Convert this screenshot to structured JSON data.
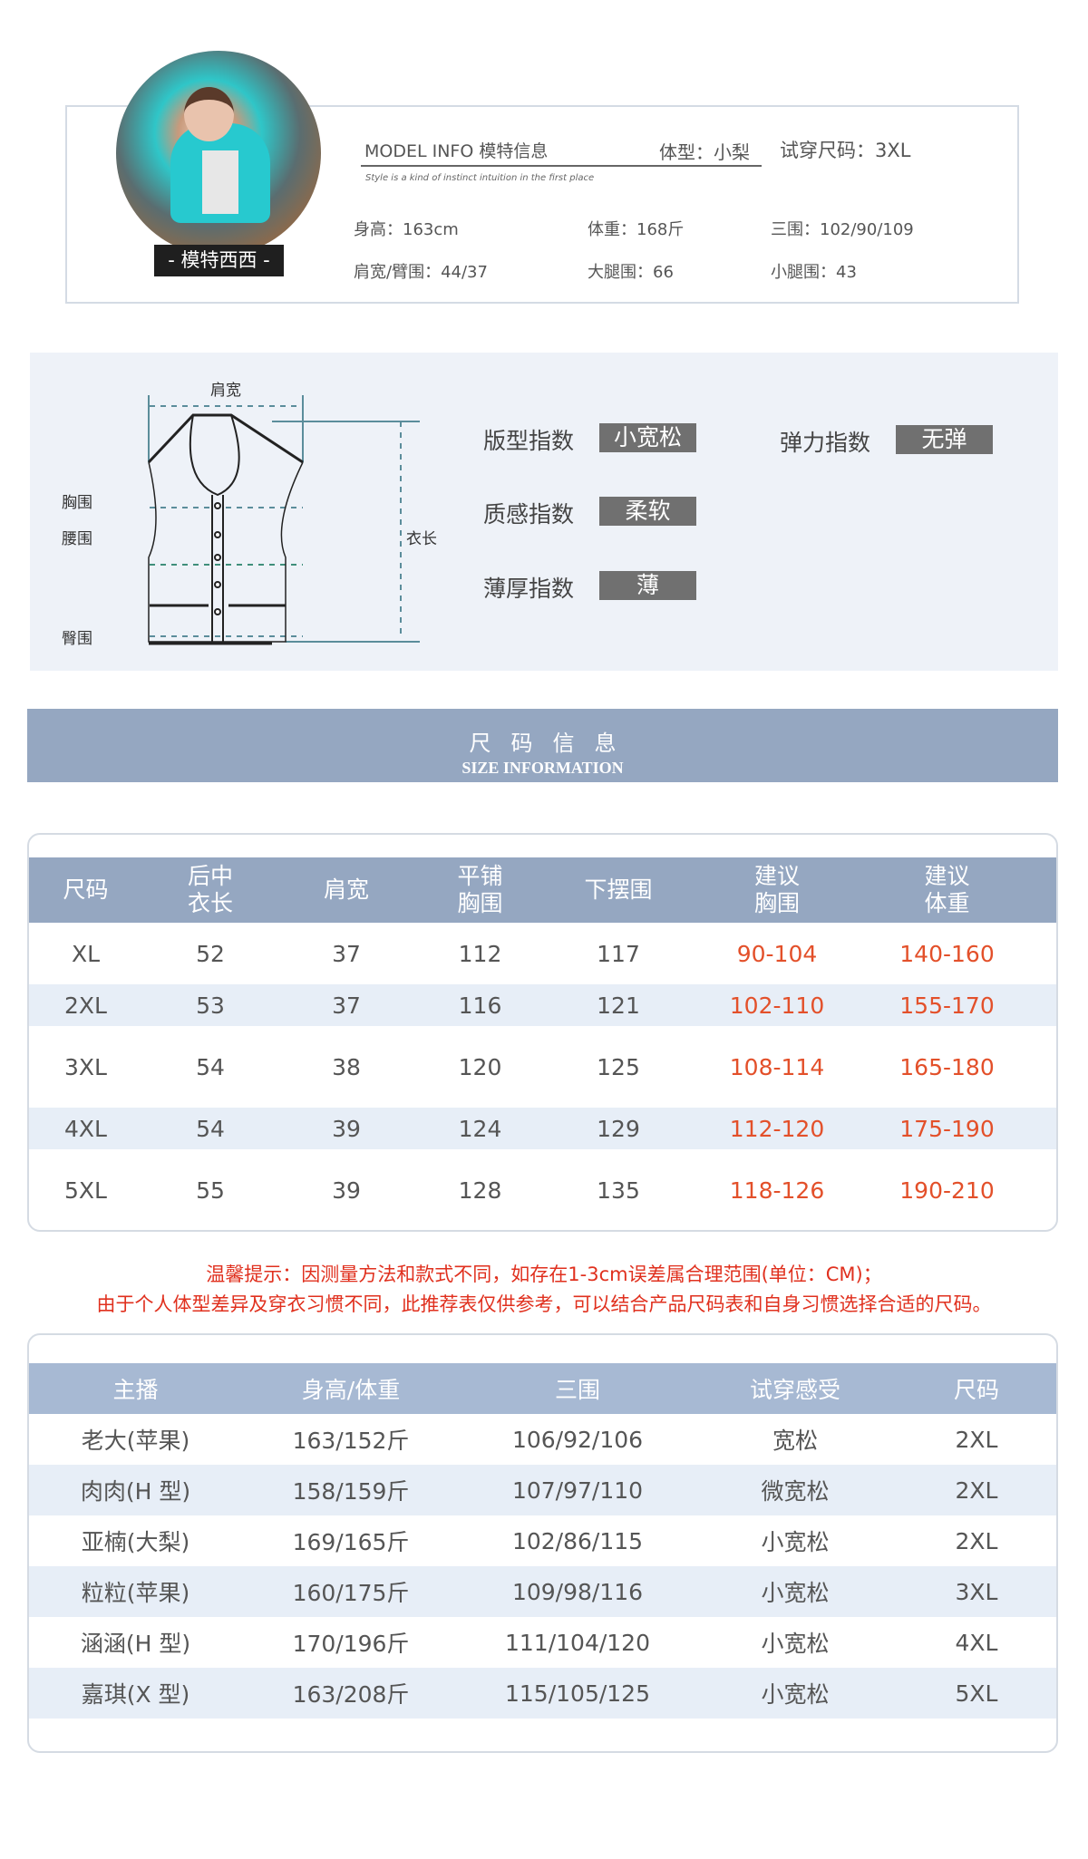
{
  "model": {
    "name": "- 模特西西 -",
    "title": "MODEL  INFO 模特信息",
    "body_type": "体型：小梨",
    "try_size": "试穿尺码：3XL",
    "slogan": "Style is a kind of instinct    intuition in the first place",
    "stats": [
      "身高：163cm",
      "体重：168斤",
      "三围：102/90/109",
      "肩宽/臂围：44/37",
      "大腿围：66",
      "小腿围：43"
    ]
  },
  "diagram": {
    "labels": {
      "shoulder": "肩宽",
      "chest": "胸围",
      "waist": "腰围",
      "hip": "臀围",
      "length": "衣长"
    },
    "indices": [
      {
        "label": "版型指数",
        "value": "小宽松"
      },
      {
        "label": "弹力指数",
        "value": "无弹"
      },
      {
        "label": "质感指数",
        "value": "柔软"
      },
      {
        "label": "薄厚指数",
        "value": "薄"
      }
    ]
  },
  "banner": {
    "cn": "尺码信息",
    "en": "SIZE  INFORMATION"
  },
  "size_table": {
    "headers": [
      [
        "尺码",
        ""
      ],
      [
        "后中",
        "衣长"
      ],
      [
        "肩宽",
        ""
      ],
      [
        "平铺",
        "胸围"
      ],
      [
        "下摆围",
        ""
      ],
      [
        "建议",
        "胸围"
      ],
      [
        "建议",
        "体重"
      ]
    ],
    "rows": [
      [
        "XL",
        "52",
        "37",
        "112",
        "117",
        "90-104",
        "140-160"
      ],
      [
        "2XL",
        "53",
        "37",
        "116",
        "121",
        "102-110",
        "155-170"
      ],
      [
        "3XL",
        "54",
        "38",
        "120",
        "125",
        "108-114",
        "165-180"
      ],
      [
        "4XL",
        "54",
        "39",
        "124",
        "129",
        "112-120",
        "175-190"
      ],
      [
        "5XL",
        "55",
        "39",
        "128",
        "135",
        "118-126",
        "190-210"
      ]
    ]
  },
  "notes": [
    "温馨提示：因测量方法和款式不同，如存在1-3cm误差属合理范围(单位：CM)；",
    "由于个人体型差异及穿衣习惯不同，此推荐表仅供参考，可以结合产品尺码表和自身习惯选择合适的尺码。"
  ],
  "tryon_table": {
    "headers": [
      "主播",
      "身高/体重",
      "三围",
      "试穿感受",
      "尺码"
    ],
    "rows": [
      [
        "老大(苹果)",
        "163/152斤",
        "106/92/106",
        "宽松",
        "2XL"
      ],
      [
        "肉肉(H 型)",
        "158/159斤",
        "107/97/110",
        "微宽松",
        "2XL"
      ],
      [
        "亚楠(大梨)",
        "169/165斤",
        "102/86/115",
        "小宽松",
        "2XL"
      ],
      [
        "粒粒(苹果)",
        "160/175斤",
        "109/98/116",
        "小宽松",
        "3XL"
      ],
      [
        "涵涵(H 型)",
        "170/196斤",
        "111/104/120",
        "小宽松",
        "4XL"
      ],
      [
        "嘉琪(X 型)",
        "163/208斤",
        "115/105/125",
        "小宽松",
        "5XL"
      ]
    ]
  },
  "colors": {
    "header": "#95a7c1",
    "band": "#e7eef7",
    "highlight": "#e3502a",
    "note": "#e0301e",
    "tag": "#707070"
  }
}
